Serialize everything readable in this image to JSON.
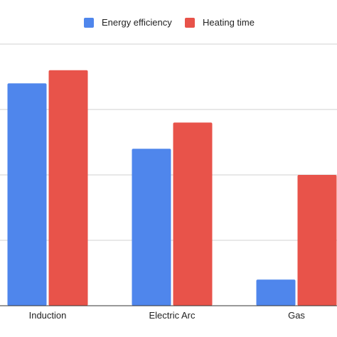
{
  "colors": {
    "energy": "#4f86ec",
    "heating": "#e8534a",
    "grid": "#d0d0d0",
    "axis": "#333333"
  },
  "chart_data": {
    "type": "bar",
    "categories": [
      "Induction",
      "Electric Arc",
      "Gas"
    ],
    "series": [
      {
        "name": "Energy efficiency",
        "values": [
          85,
          60,
          10
        ]
      },
      {
        "name": "Heating time",
        "values": [
          90,
          70,
          50
        ]
      }
    ],
    "ylim": [
      0,
      100
    ],
    "grid": true,
    "legend": "top-center",
    "title": "",
    "xlabel": "",
    "ylabel": ""
  }
}
